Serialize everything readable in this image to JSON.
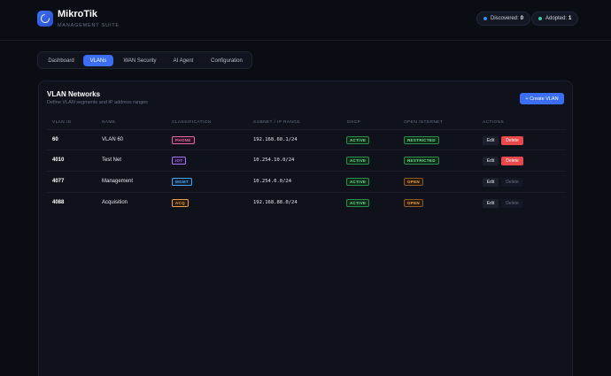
{
  "app": {
    "title": "MikroTik",
    "subtitle": "MANAGEMENT SUITE"
  },
  "status": {
    "discovered_label": "Discovered:",
    "discovered_count": "0",
    "discovered_color": "#3b8cff",
    "adopted_label": "Adopted:",
    "adopted_count": "1",
    "adopted_color": "#37c9a8"
  },
  "tabs": [
    {
      "label": "Dashboard",
      "active": false
    },
    {
      "label": "VLANs",
      "active": true
    },
    {
      "label": "WAN Security",
      "active": false
    },
    {
      "label": "AI Agent",
      "active": false
    },
    {
      "label": "Configuration",
      "active": false
    }
  ],
  "panel": {
    "title": "VLAN Networks",
    "subtitle": "Define VLAN segments and IP address ranges",
    "create_label": "+ Create VLAN"
  },
  "table": {
    "headers": [
      "VLAN ID",
      "NAME",
      "CLASSIFICATION",
      "SUBNET / IP RANGE",
      "DHCP",
      "OPEN INTERNET",
      "ACTIONS"
    ],
    "rows": [
      {
        "id": "60",
        "name": "VLAN 60",
        "classification": "PHONE",
        "cls_color": "#e36aa6",
        "cls_bg": "#2a1224",
        "subnet": "192.168.60.1/24",
        "dhcp": "ACTIVE",
        "internet": "RESTRICTED",
        "edit": "Edit",
        "delete": "Delete",
        "delete_enabled": true
      },
      {
        "id": "4010",
        "name": "Test Net",
        "classification": "IOT",
        "cls_color": "#a674f0",
        "cls_bg": "#1e1430",
        "subnet": "10.254.10.0/24",
        "dhcp": "ACTIVE",
        "internet": "RESTRICTED",
        "edit": "Edit",
        "delete": "Delete",
        "delete_enabled": true
      },
      {
        "id": "4077",
        "name": "Management",
        "classification": "MGMT",
        "cls_color": "#4aa3f0",
        "cls_bg": "#0f1e30",
        "subnet": "10.254.0.0/24",
        "dhcp": "ACTIVE",
        "internet": "OPEN",
        "edit": "Edit",
        "delete": "Delete",
        "delete_enabled": false
      },
      {
        "id": "4088",
        "name": "Acquisition",
        "classification": "ACQ",
        "cls_color": "#e9a04f",
        "cls_bg": "#2a1a0c",
        "subnet": "192.168.88.0/24",
        "dhcp": "ACTIVE",
        "internet": "OPEN",
        "edit": "Edit",
        "delete": "Delete",
        "delete_enabled": false
      }
    ]
  }
}
